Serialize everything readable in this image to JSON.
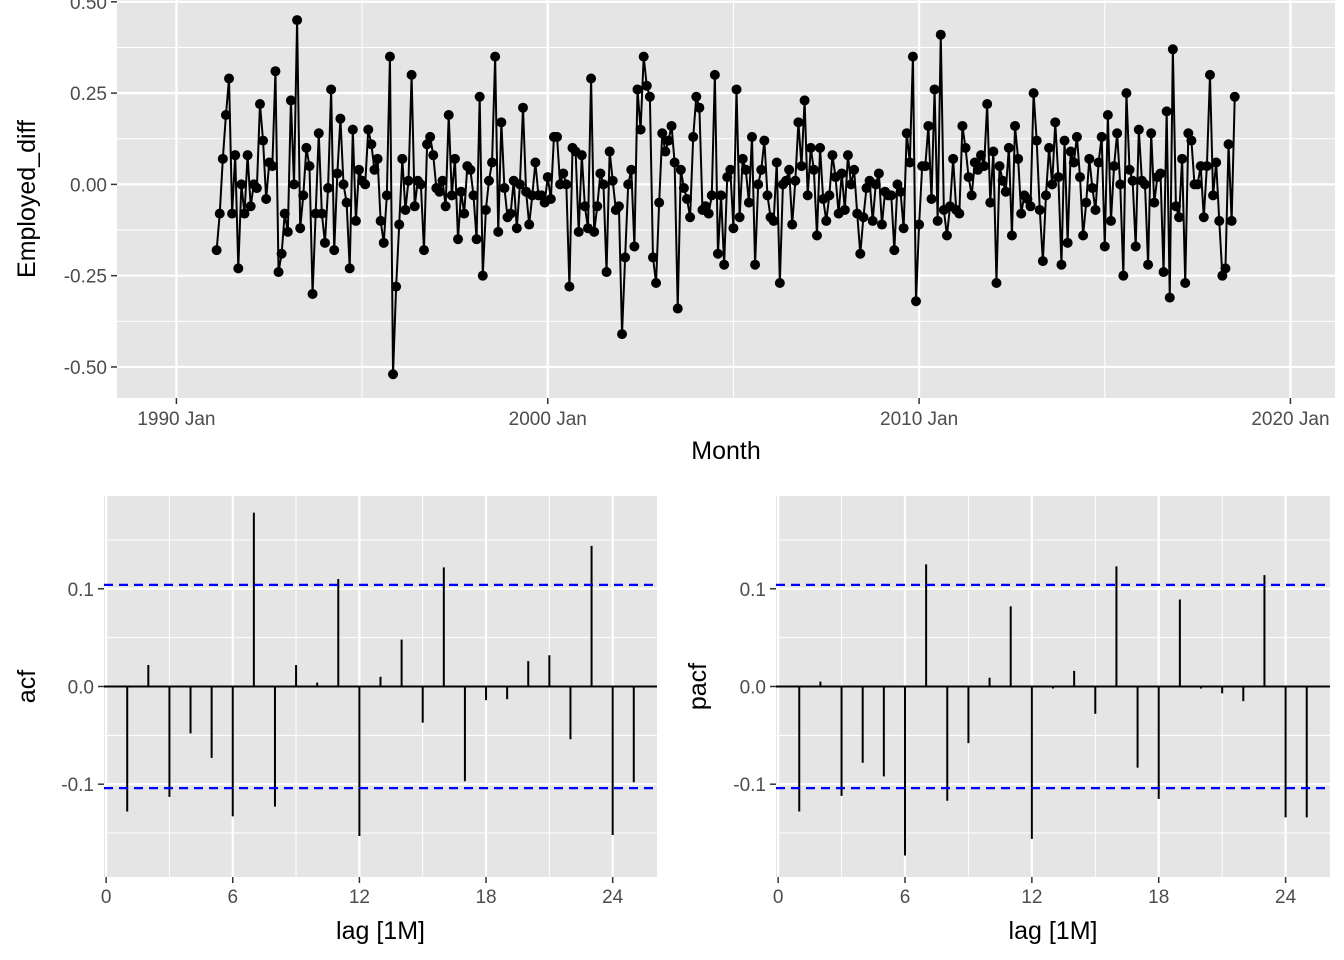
{
  "colors": {
    "panel_background": "#e5e5e5",
    "grid_major": "#ffffff",
    "series": "#000000",
    "confidence_band": "#0000ff",
    "tick_text": "#4d4d4d"
  },
  "chart_data": [
    {
      "type": "line",
      "markers": true,
      "xlabel": "Month",
      "ylabel": "Employed_diff",
      "x_tick_labels": [
        "1990 Jan",
        "2000 Jan",
        "2010 Jan",
        "2020 Jan"
      ],
      "x_tick_years": [
        1990,
        2000,
        2010,
        2020
      ],
      "xlim": [
        1988.4,
        2021.2
      ],
      "y_ticks": [
        -0.5,
        -0.25,
        0,
        0.25,
        0.5
      ],
      "y_tick_labels": [
        "-0.50",
        "-0.25",
        "0.00",
        "0.25",
        "0.50"
      ],
      "ylim": [
        -0.585,
        0.505
      ],
      "grid": true,
      "x_start": "1991 Feb",
      "x_end": "2019 Sep",
      "values": [
        -0.18,
        -0.08,
        0.07,
        0.19,
        0.29,
        -0.08,
        0.08,
        -0.23,
        0.0,
        -0.08,
        0.08,
        -0.06,
        0.0,
        -0.01,
        0.22,
        0.12,
        -0.04,
        0.06,
        0.05,
        0.31,
        -0.24,
        -0.19,
        -0.08,
        -0.13,
        0.23,
        0.0,
        0.45,
        -0.12,
        -0.03,
        0.1,
        0.05,
        -0.3,
        -0.08,
        0.14,
        -0.08,
        -0.16,
        -0.01,
        0.26,
        -0.18,
        0.03,
        0.18,
        0.0,
        -0.05,
        -0.23,
        0.15,
        -0.1,
        0.04,
        0.01,
        0.0,
        0.15,
        0.11,
        0.04,
        0.07,
        -0.1,
        -0.16,
        -0.03,
        0.35,
        -0.52,
        -0.28,
        -0.11,
        0.07,
        -0.07,
        0.01,
        0.3,
        -0.06,
        0.01,
        0.0,
        -0.18,
        0.11,
        0.13,
        0.08,
        -0.01,
        -0.02,
        0.01,
        -0.06,
        0.19,
        -0.03,
        0.07,
        -0.15,
        -0.02,
        -0.08,
        0.05,
        0.04,
        -0.03,
        -0.15,
        0.24,
        -0.25,
        -0.07,
        0.01,
        0.06,
        0.35,
        -0.13,
        0.17,
        -0.01,
        -0.09,
        -0.08,
        0.01,
        -0.12,
        0.0,
        0.21,
        -0.02,
        -0.11,
        -0.03,
        0.06,
        -0.03,
        -0.03,
        -0.05,
        0.02,
        -0.04,
        0.13,
        0.13,
        0.0,
        0.03,
        0.0,
        -0.28,
        0.1,
        0.09,
        -0.13,
        0.08,
        -0.06,
        -0.12,
        0.29,
        -0.13,
        -0.06,
        0.03,
        0.0,
        -0.24,
        0.09,
        0.01,
        -0.07,
        -0.06,
        -0.41,
        -0.2,
        0.0,
        0.04,
        -0.17,
        0.26,
        0.15,
        0.35,
        0.27,
        0.24,
        -0.2,
        -0.27,
        -0.05,
        0.14,
        0.09,
        0.12,
        0.16,
        0.06,
        -0.34,
        0.04,
        -0.01,
        -0.04,
        -0.09,
        0.13,
        0.24,
        0.21,
        -0.07,
        -0.06,
        -0.08,
        -0.03,
        0.3,
        -0.19,
        -0.03,
        -0.22,
        0.02,
        0.04,
        -0.12,
        0.26,
        -0.09,
        0.07,
        0.04,
        -0.05,
        0.13,
        -0.22,
        0.0,
        0.04,
        0.12,
        -0.03,
        -0.09,
        -0.1,
        0.06,
        -0.27,
        0.0,
        0.01,
        0.04,
        -0.11,
        0.01,
        0.17,
        0.05,
        0.23,
        -0.03,
        0.1,
        0.04,
        -0.14,
        0.1,
        -0.04,
        -0.1,
        -0.03,
        0.08,
        0.02,
        -0.08,
        0.03,
        -0.07,
        0.08,
        0.0,
        0.04,
        -0.08,
        -0.19,
        -0.09,
        -0.01,
        0.01,
        -0.1,
        0.0,
        0.03,
        -0.11,
        -0.02,
        -0.03,
        -0.03,
        -0.18,
        0.0,
        -0.02,
        -0.12,
        0.14,
        0.06,
        0.35,
        -0.32,
        -0.11,
        0.05,
        0.05,
        0.16,
        -0.04,
        0.26,
        -0.1,
        0.41,
        -0.07,
        -0.14,
        -0.06,
        0.07,
        -0.07,
        -0.08,
        0.16,
        0.1,
        0.02,
        -0.03,
        0.06,
        0.04,
        0.08,
        0.05,
        0.22,
        -0.05,
        0.09,
        -0.27,
        0.05,
        0.01,
        -0.02,
        0.1,
        -0.14,
        0.16,
        0.07,
        -0.08,
        -0.03,
        -0.04,
        -0.06,
        0.25,
        0.12,
        -0.07,
        -0.21,
        -0.03,
        0.1,
        0.0,
        0.17,
        0.02,
        -0.22,
        0.12,
        -0.16,
        0.09,
        0.06,
        0.13,
        0.02,
        -0.14,
        -0.05,
        0.07,
        -0.01,
        -0.07,
        0.06,
        0.13,
        -0.17,
        0.19,
        -0.1,
        0.05,
        0.14,
        0.0,
        -0.25,
        0.25,
        0.04,
        0.01,
        -0.17,
        0.15,
        0.01,
        0.0,
        -0.22,
        0.14,
        -0.05,
        0.02,
        0.03,
        -0.24,
        0.2,
        -0.31,
        0.37,
        -0.06,
        -0.09,
        0.07,
        -0.27,
        0.14,
        0.12,
        0.0,
        0.0,
        0.05,
        -0.09,
        0.05,
        0.3,
        -0.03,
        0.06,
        -0.1,
        -0.25,
        -0.23,
        0.11,
        -0.1,
        0.24
      ]
    },
    {
      "type": "bar",
      "xlabel": "lag [1M]",
      "ylabel": "acf",
      "x_ticks": [
        0,
        6,
        12,
        18,
        24
      ],
      "x_tick_labels": [
        "0",
        "6",
        "12",
        "18",
        "24"
      ],
      "xlim": [
        -0.1,
        26.1
      ],
      "y_ticks": [
        -0.1,
        0,
        0.1
      ],
      "y_tick_labels": [
        "-0.1",
        "0.0",
        "0.1"
      ],
      "ylim": [
        -0.195,
        0.195
      ],
      "grid": true,
      "confidence_limit": 0.104,
      "lags": [
        1,
        2,
        3,
        4,
        5,
        6,
        7,
        8,
        9,
        10,
        11,
        12,
        13,
        14,
        15,
        16,
        17,
        18,
        19,
        20,
        21,
        22,
        23,
        24,
        25
      ],
      "values": [
        -0.128,
        0.022,
        -0.113,
        -0.048,
        -0.073,
        -0.133,
        0.178,
        -0.123,
        0.022,
        0.004,
        0.11,
        -0.153,
        0.01,
        0.048,
        -0.037,
        0.122,
        -0.097,
        -0.014,
        -0.013,
        0.026,
        0.032,
        -0.054,
        0.144,
        -0.152,
        -0.098
      ]
    },
    {
      "type": "bar",
      "xlabel": "lag [1M]",
      "ylabel": "pacf",
      "x_ticks": [
        0,
        6,
        12,
        18,
        24
      ],
      "x_tick_labels": [
        "0",
        "6",
        "12",
        "18",
        "24"
      ],
      "xlim": [
        -0.1,
        26.1
      ],
      "y_ticks": [
        -0.1,
        0,
        0.1
      ],
      "y_tick_labels": [
        "-0.1",
        "0.0",
        "0.1"
      ],
      "ylim": [
        -0.195,
        0.195
      ],
      "grid": true,
      "confidence_limit": 0.104,
      "lags": [
        1,
        2,
        3,
        4,
        5,
        6,
        7,
        8,
        9,
        10,
        11,
        12,
        13,
        14,
        15,
        16,
        17,
        18,
        19,
        20,
        21,
        22,
        23,
        24,
        25
      ],
      "values": [
        -0.128,
        0.005,
        -0.112,
        -0.078,
        -0.092,
        -0.173,
        0.125,
        -0.117,
        -0.058,
        0.009,
        0.082,
        -0.156,
        -0.002,
        0.016,
        -0.028,
        0.123,
        -0.083,
        -0.115,
        0.089,
        -0.002,
        -0.007,
        -0.015,
        0.114,
        -0.134,
        -0.134
      ]
    }
  ]
}
